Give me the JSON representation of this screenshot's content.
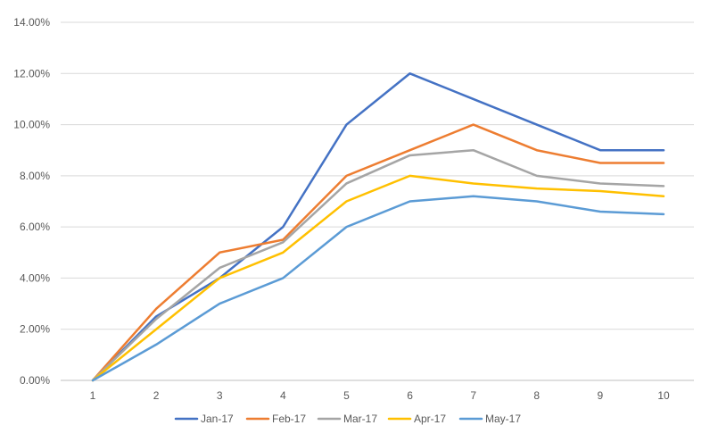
{
  "chart_data": {
    "type": "line",
    "title": "",
    "xlabel": "",
    "ylabel": "",
    "x": [
      1,
      2,
      3,
      4,
      5,
      6,
      7,
      8,
      9,
      10
    ],
    "x_tick_labels": [
      "1",
      "2",
      "3",
      "4",
      "5",
      "6",
      "7",
      "8",
      "9",
      "10"
    ],
    "ylim": [
      0,
      0.14
    ],
    "y_ticks": [
      0,
      0.02,
      0.04,
      0.06,
      0.08,
      0.1,
      0.12,
      0.14
    ],
    "y_tick_labels": [
      "0.00%",
      "2.00%",
      "4.00%",
      "6.00%",
      "8.00%",
      "10.00%",
      "12.00%",
      "14.00%"
    ],
    "grid": "horizontal",
    "legend_position": "bottom",
    "series": [
      {
        "name": "Jan-17",
        "color": "#4472C4",
        "values": [
          0,
          0.025,
          0.04,
          0.06,
          0.1,
          0.12,
          0.11,
          0.1,
          0.09,
          0.09
        ]
      },
      {
        "name": "Feb-17",
        "color": "#ED7D31",
        "values": [
          0,
          0.028,
          0.05,
          0.055,
          0.08,
          0.09,
          0.1,
          0.09,
          0.085,
          0.085
        ]
      },
      {
        "name": "Mar-17",
        "color": "#A5A5A5",
        "values": [
          0,
          0.024,
          0.044,
          0.054,
          0.077,
          0.088,
          0.09,
          0.08,
          0.077,
          0.076
        ]
      },
      {
        "name": "Apr-17",
        "color": "#FFC000",
        "values": [
          0,
          0.02,
          0.04,
          0.05,
          0.07,
          0.08,
          0.077,
          0.075,
          0.074,
          0.072
        ]
      },
      {
        "name": "May-17",
        "color": "#5B9BD5",
        "values": [
          0,
          0.014,
          0.03,
          0.04,
          0.06,
          0.07,
          0.072,
          0.07,
          0.066,
          0.065
        ]
      }
    ]
  }
}
